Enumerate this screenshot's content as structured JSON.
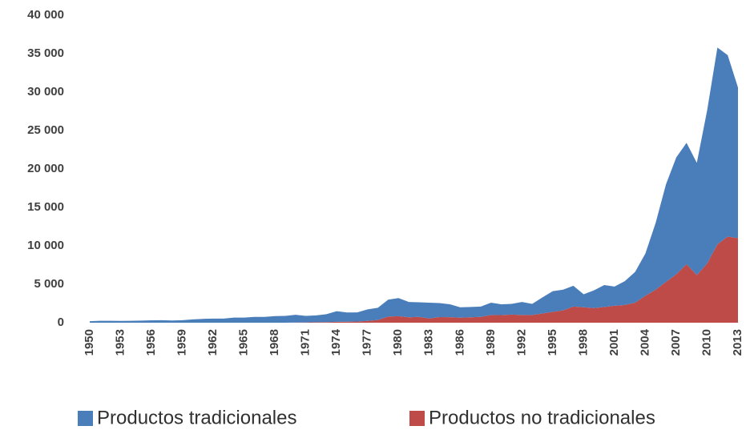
{
  "chart_data": {
    "type": "stacked_area",
    "categories": [
      "1950",
      null,
      null,
      "1953",
      null,
      null,
      "1956",
      null,
      null,
      "1959",
      null,
      null,
      "1962",
      null,
      null,
      "1965",
      null,
      null,
      "1968",
      null,
      null,
      "1971",
      null,
      null,
      "1974",
      null,
      null,
      "1977",
      null,
      null,
      "1980",
      null,
      null,
      "1983",
      null,
      null,
      "1986",
      null,
      null,
      "1989",
      null,
      null,
      "1992",
      null,
      null,
      "1995",
      null,
      null,
      "1998",
      null,
      null,
      "2001",
      null,
      null,
      "2004",
      null,
      null,
      "2007",
      null,
      null,
      "2010",
      null,
      null,
      "2013"
    ],
    "series": [
      {
        "name": "Productos tradicionales",
        "color": "#4a7ebb",
        "values": [
          200,
          250,
          250,
          230,
          250,
          270,
          310,
          330,
          290,
          320,
          430,
          500,
          540,
          540,
          670,
          670,
          760,
          750,
          860,
          880,
          1000,
          850,
          890,
          1030,
          1380,
          1200,
          1190,
          1500,
          1590,
          2200,
          2350,
          2000,
          1890,
          2050,
          1820,
          1690,
          1350,
          1350,
          1350,
          1600,
          1410,
          1400,
          1700,
          1450,
          2100,
          2700,
          2700,
          2700,
          1700,
          2300,
          2850,
          2500,
          3100,
          4000,
          5500,
          8700,
          12700,
          15200,
          15800,
          14600,
          19900,
          25600,
          23600,
          19600
        ]
      },
      {
        "name": "Productos no tradicionales",
        "color": "#be4b48",
        "values": [
          0,
          0,
          0,
          0,
          0,
          0,
          0,
          0,
          0,
          0,
          0,
          0,
          0,
          0,
          0,
          0,
          0,
          0,
          0,
          0,
          30,
          40,
          60,
          80,
          120,
          130,
          150,
          230,
          350,
          800,
          850,
          700,
          760,
          550,
          730,
          710,
          650,
          700,
          750,
          1000,
          990,
          1050,
          1000,
          1000,
          1200,
          1400,
          1600,
          2100,
          2000,
          1900,
          2050,
          2200,
          2300,
          2600,
          3500,
          4300,
          5300,
          6300,
          7600,
          6200,
          7700,
          10200,
          11200,
          11000
        ]
      }
    ],
    "ylim": [
      0,
      40000
    ],
    "yticks": [
      0,
      {
        "value": 5000,
        "label": "5 000"
      },
      {
        "value": 10000,
        "label": "10 000"
      },
      {
        "value": 15000,
        "label": "15 000"
      },
      {
        "value": 20000,
        "label": "20 000"
      },
      {
        "value": 25000,
        "label": "25 000"
      },
      {
        "value": 30000,
        "label": "30 000"
      },
      {
        "value": 35000,
        "label": "35 000"
      },
      {
        "value": 40000,
        "label": "40 000"
      }
    ],
    "grid": false,
    "legend": "bottom"
  }
}
